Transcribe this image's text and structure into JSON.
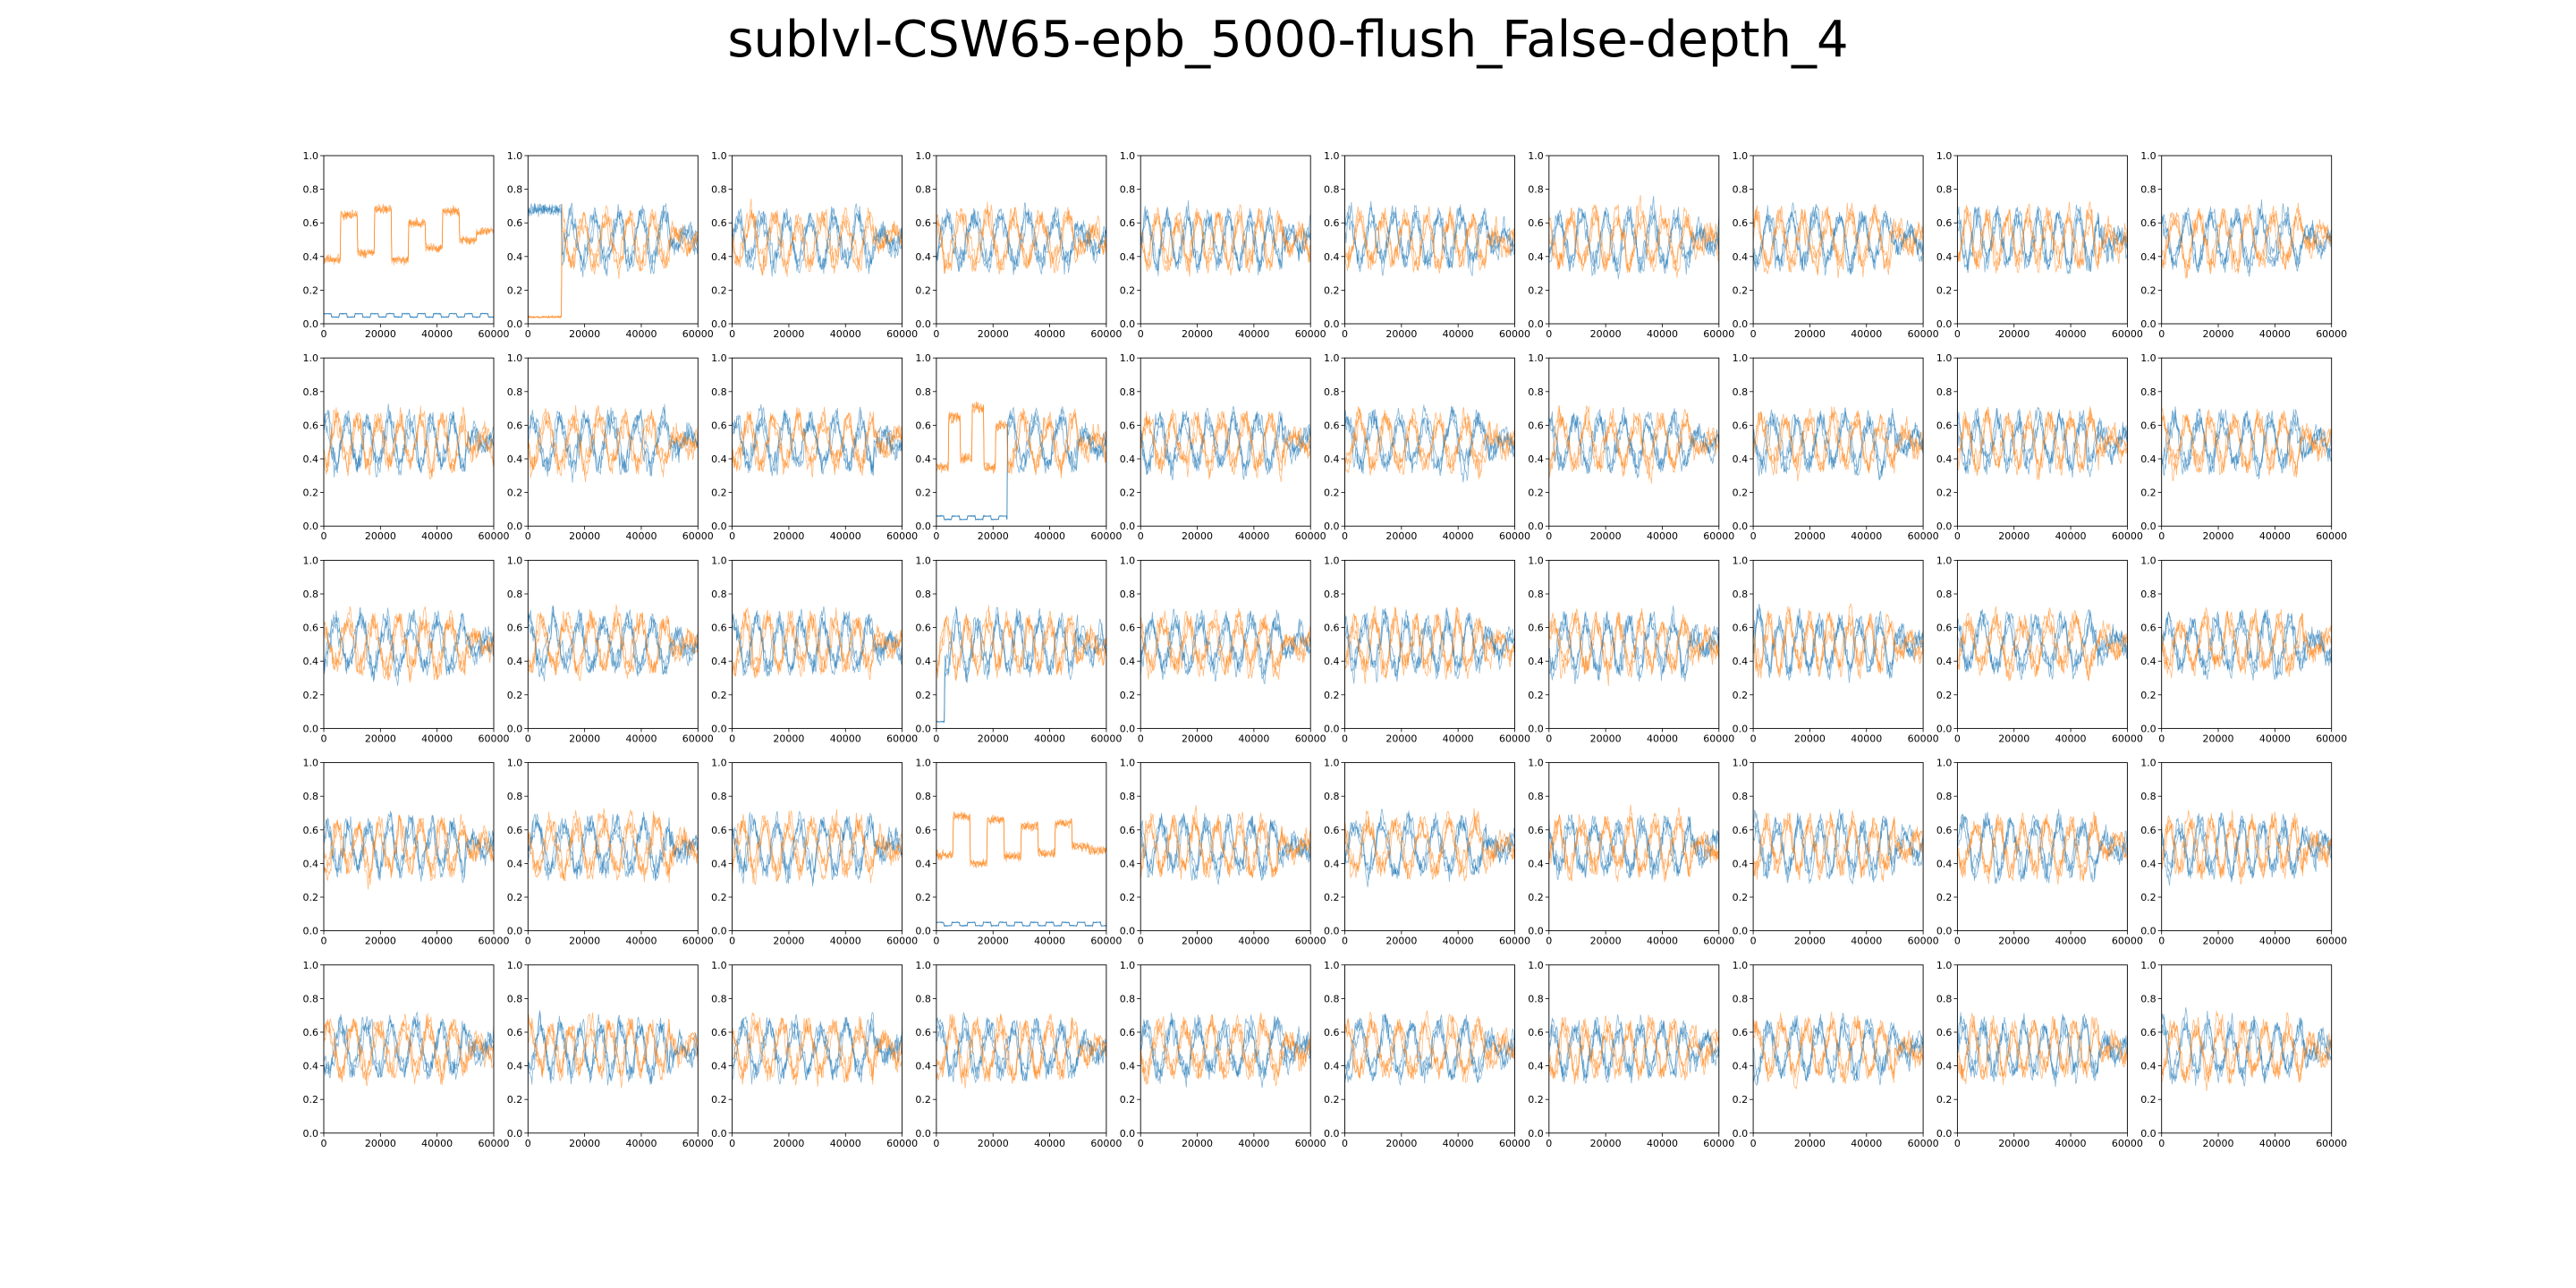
{
  "figure": {
    "title": "sublvl-CSW65-epb_5000-flush_False-depth_4"
  },
  "chart_data": {
    "type": "line",
    "layout": {
      "rows": 5,
      "cols": 10
    },
    "xlim": [
      0,
      60000
    ],
    "ylim": [
      0.0,
      1.0
    ],
    "x_ticks": [
      0,
      20000,
      40000,
      60000
    ],
    "x_tick_labels": [
      "0",
      "20000",
      "40000",
      "60000"
    ],
    "y_ticks": [
      0.0,
      0.2,
      0.4,
      0.6,
      0.8,
      1.0
    ],
    "y_tick_labels": [
      "0.0",
      "0.2",
      "0.4",
      "0.6",
      "0.8",
      "1.0"
    ],
    "grid": false,
    "series_colors": {
      "blue": "#1f77b4",
      "orange": "#ff7f0e"
    },
    "panel_pattern": {
      "default": "oscillating",
      "oscillation_center": 0.5,
      "oscillation_amplitude": 0.14,
      "noise_band": 0.09,
      "special_panels": [
        {
          "row": 0,
          "col": 0,
          "pattern": "blue_low",
          "orange_levels": [
            0.38,
            0.65,
            0.42,
            0.68,
            0.38,
            0.6,
            0.45,
            0.67,
            0.5,
            0.55
          ],
          "blue_level": 0.05
        },
        {
          "row": 0,
          "col": 1,
          "pattern": "late_start",
          "blue_high_until": 12000,
          "orange_low_until": 12000
        },
        {
          "row": 1,
          "col": 3,
          "pattern": "blue_low_until",
          "low_until": 25000,
          "orange_levels": [
            0.35,
            0.65,
            0.4,
            0.7,
            0.35,
            0.6
          ],
          "blue_level": 0.05
        },
        {
          "row": 2,
          "col": 3,
          "pattern": "blue_low_start",
          "low_until": 3000,
          "blue_level": 0.04
        },
        {
          "row": 3,
          "col": 3,
          "pattern": "blue_low",
          "orange_levels": [
            0.45,
            0.68,
            0.4,
            0.66,
            0.44,
            0.62,
            0.46,
            0.64,
            0.5,
            0.48
          ],
          "blue_level": 0.04
        }
      ]
    }
  }
}
